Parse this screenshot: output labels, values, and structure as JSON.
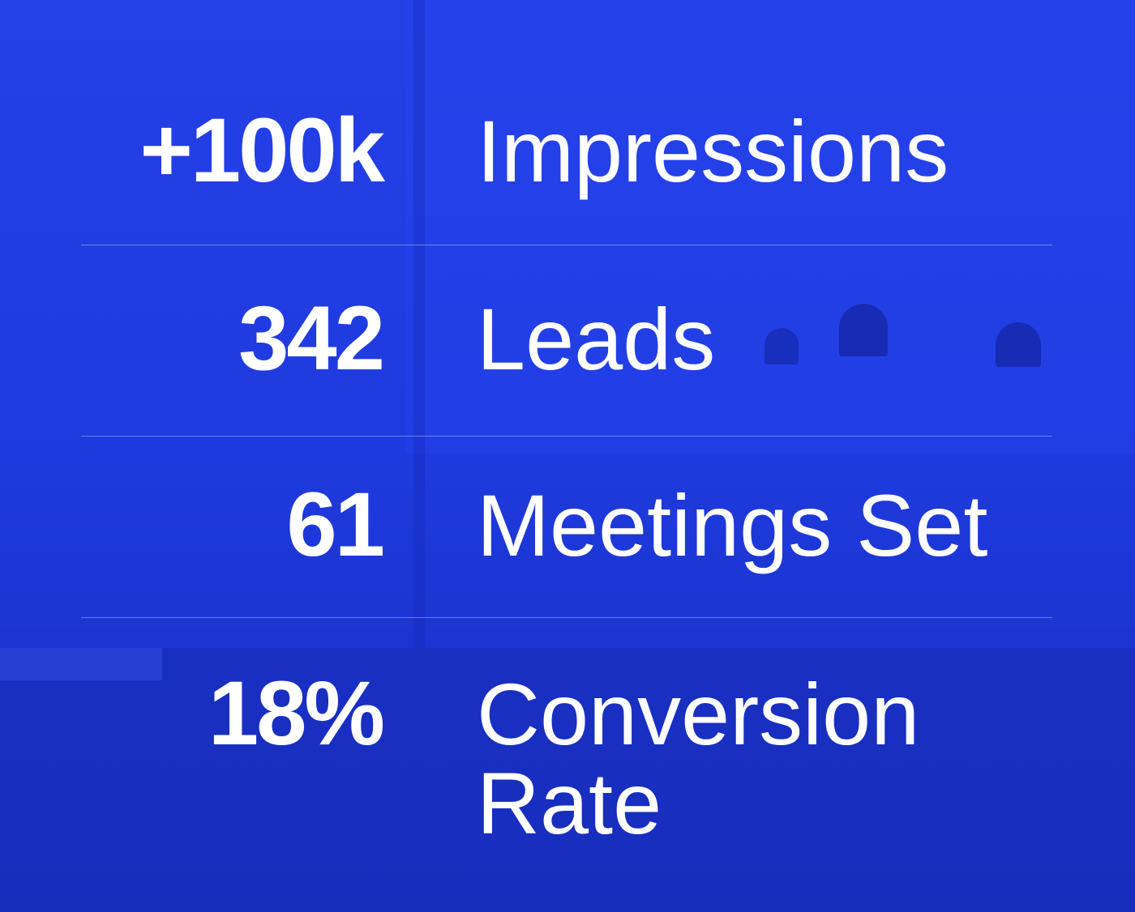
{
  "stats": [
    {
      "value": "+100k",
      "label": "Impressions"
    },
    {
      "value": "342",
      "label": "Leads"
    },
    {
      "value": "61",
      "label": "Meetings Set"
    },
    {
      "value": "18%",
      "label": "Conversion Rate"
    }
  ]
}
